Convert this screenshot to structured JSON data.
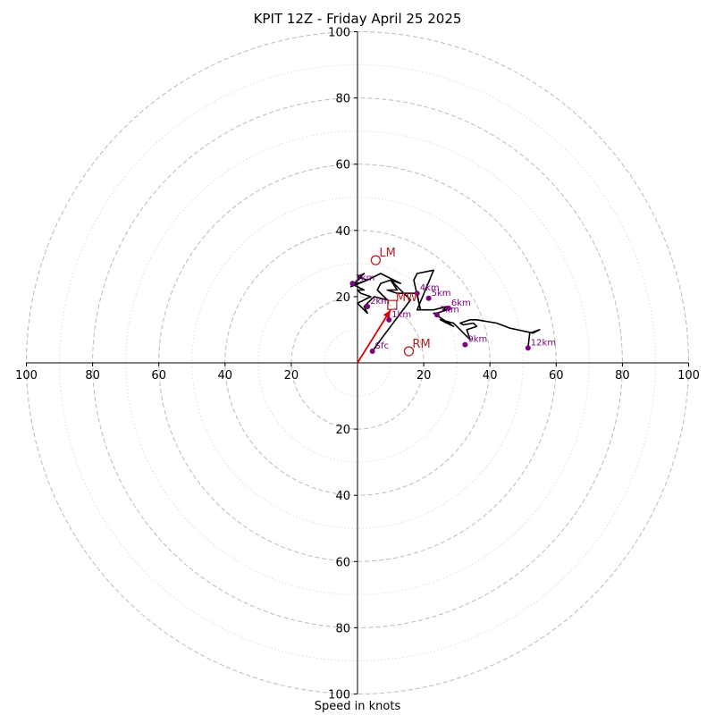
{
  "chart_data": {
    "type": "hodograph",
    "title": "KPIT 12Z - Friday April 25 2025",
    "xlabel": "Speed in knots",
    "ylabel": "",
    "xlim": [
      -100,
      100
    ],
    "ylim": [
      -100,
      100
    ],
    "ring_major": [
      20,
      40,
      60,
      80,
      100
    ],
    "ring_minor": [
      10,
      30,
      50,
      70,
      90
    ],
    "tick_labels": [
      "100",
      "80",
      "60",
      "40",
      "20",
      "20",
      "40",
      "60",
      "80",
      "100"
    ],
    "wind_trace": {
      "u": [
        4.5,
        7,
        10,
        13,
        16,
        10,
        7,
        6,
        9,
        5,
        2,
        3,
        0,
        4,
        1,
        0,
        2,
        -2,
        0,
        3,
        0,
        2,
        -2,
        3,
        7,
        13,
        10,
        12,
        9,
        12,
        15,
        18,
        19,
        17,
        18,
        23,
        18,
        23,
        27,
        26,
        27,
        24,
        23,
        29,
        25,
        29,
        31,
        34,
        33,
        36,
        35,
        32,
        31,
        34,
        36,
        36,
        42,
        46,
        53,
        55,
        52,
        51.5
      ],
      "v": [
        3.5,
        7,
        11,
        15,
        19,
        25,
        24,
        22,
        19,
        20,
        17,
        15,
        18,
        20,
        21,
        22,
        22,
        24,
        24,
        25,
        26,
        27,
        23,
        25,
        27,
        24,
        25,
        22,
        22,
        21,
        21,
        21,
        16,
        25,
        27,
        28,
        16,
        16,
        17,
        16,
        16,
        15,
        15,
        11,
        13,
        12,
        10,
        7,
        10,
        11,
        12,
        11.5,
        12,
        13,
        13,
        13,
        12,
        10.5,
        9,
        10,
        9,
        4.5
      ]
    },
    "height_markers": [
      {
        "label": "Sfc",
        "u": 4.5,
        "v": 3.5
      },
      {
        "label": "1km",
        "u": 9.5,
        "v": 13
      },
      {
        "label": "2km",
        "u": 3,
        "v": 17
      },
      {
        "label": "3km",
        "u": -1.5,
        "v": 24
      },
      {
        "label": "4km",
        "u": 18,
        "v": 21
      },
      {
        "label": "5km",
        "u": 21.5,
        "v": 19.5
      },
      {
        "label": "6km",
        "u": 27.5,
        "v": 16.5
      },
      {
        "label": "7km",
        "u": 24,
        "v": 14.5
      },
      {
        "label": "9km",
        "u": 32.5,
        "v": 5.5
      },
      {
        "label": "12km",
        "u": 51.5,
        "v": 4.5
      }
    ],
    "storm_motion": [
      {
        "label": "LM",
        "u": 5.5,
        "v": 31
      },
      {
        "label": "RM",
        "u": 15.5,
        "v": 3.5
      },
      {
        "label": "MW",
        "u": 10.5,
        "v": 17.5
      }
    ],
    "shear_vector": {
      "u": 10,
      "v": 16
    },
    "colors": {
      "trace": "#000000",
      "markers": "#800080",
      "storm_motion": "#b22222",
      "shear_vector": "#dd0000",
      "ring_major": "#bbbbbb",
      "ring_minor": "#dddddd"
    }
  }
}
